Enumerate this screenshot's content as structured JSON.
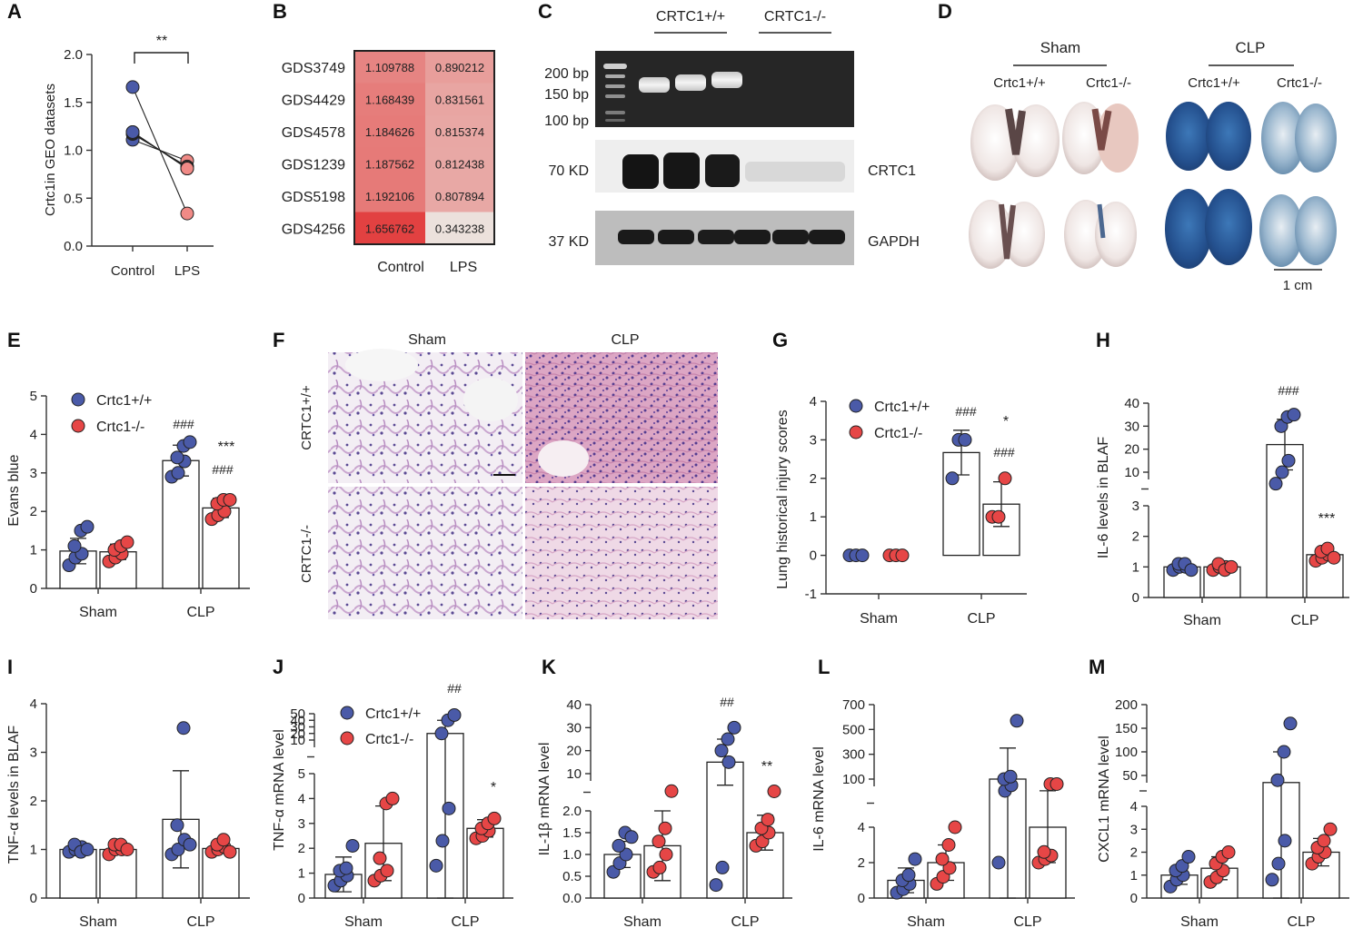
{
  "colors": {
    "wt": "#4a5aa8",
    "ko": "#e64646",
    "blot_bg": "#262626",
    "band": "#ececec",
    "axis": "#333333"
  },
  "panels": {
    "A": {
      "letter": "A",
      "ylabel": "Crtc1in GEO datasets",
      "xticks": [
        "Control",
        "LPS"
      ],
      "yticks": [
        "0.0",
        "0.5",
        "1.0",
        "1.5",
        "2.0"
      ],
      "sig": "**"
    },
    "B": {
      "letter": "B",
      "rows": [
        {
          "id": "GDS3749",
          "control": "1.109788",
          "lps": "0.890212"
        },
        {
          "id": "GDS4429",
          "control": "1.168439",
          "lps": "0.831561"
        },
        {
          "id": "GDS4578",
          "control": "1.184626",
          "lps": "0.815374"
        },
        {
          "id": "GDS1239",
          "control": "1.187562",
          "lps": "0.812438"
        },
        {
          "id": "GDS5198",
          "control": "1.192106",
          "lps": "0.807894"
        },
        {
          "id": "GDS4256",
          "control": "1.656762",
          "lps": "0.343238"
        }
      ],
      "col_labels": [
        "Control",
        "LPS"
      ]
    },
    "C": {
      "letter": "C",
      "group_wt": "CRTC1+/+",
      "group_ko": "CRTC1-/-",
      "ladder": [
        "200 bp",
        "150 bp",
        "100 bp"
      ],
      "kd70": "70 KD",
      "kd37": "37 KD",
      "label_crtc1": "CRTC1",
      "label_gapdh": "GAPDH"
    },
    "D": {
      "letter": "D",
      "sham": "Sham",
      "clp": "CLP",
      "wt": "Crtc1+/+",
      "ko": "Crtc1-/-",
      "scale": "1 cm"
    },
    "E": {
      "letter": "E",
      "ylabel": "Evans blue",
      "yticks": [
        "0",
        "1",
        "2",
        "3",
        "4",
        "5"
      ],
      "xticks": [
        "Sham",
        "CLP"
      ],
      "legend_wt": "Crtc1+/+",
      "legend_ko": "Crtc1-/-",
      "sig_hash": "###",
      "sig_hash2": "###",
      "sig_star": "***"
    },
    "F": {
      "letter": "F",
      "col_sham": "Sham",
      "col_clp": "CLP",
      "row_wt": "CRTC1+/+",
      "row_ko": "CRTC1-/-"
    },
    "G": {
      "letter": "G",
      "ylabel": "Lung historical injury scores",
      "yticks": [
        "-1",
        "0",
        "1",
        "2",
        "3",
        "4"
      ],
      "xticks": [
        "Sham",
        "CLP"
      ],
      "legend_wt": "Crtc1+/+",
      "legend_ko": "Crtc1-/-",
      "sig_hash": "###",
      "sig_star": "*",
      "sig_hash2": "###"
    },
    "H": {
      "letter": "H",
      "ylabel": "IL-6 levels in BLAF",
      "yticks_low": [
        "0",
        "1",
        "2",
        "3"
      ],
      "yticks_high": [
        "10",
        "20",
        "30",
        "40"
      ],
      "xticks": [
        "Sham",
        "CLP"
      ],
      "sig_hash": "###",
      "sig_star": "***"
    },
    "I": {
      "letter": "I",
      "ylabel": "TNF-α levels in BLAF",
      "yticks": [
        "0",
        "1",
        "2",
        "3",
        "4"
      ],
      "xticks": [
        "Sham",
        "CLP"
      ]
    },
    "J": {
      "letter": "J",
      "ylabel": "TNF-α mRNA level",
      "yticks_low": [
        "0",
        "1",
        "2",
        "3",
        "4",
        "5"
      ],
      "yticks_high": [
        "10",
        "20",
        "30",
        "40",
        "50"
      ],
      "xticks": [
        "Sham",
        "CLP"
      ],
      "legend_wt": "Crtc1+/+",
      "legend_ko": "Crtc1-/-",
      "sig_hash": "##",
      "sig_star": "*"
    },
    "K": {
      "letter": "K",
      "ylabel": "IL-1β mRNA level",
      "yticks_low": [
        "0.0",
        "0.5",
        "1.0",
        "1.5",
        "2.0"
      ],
      "yticks_high": [
        "10",
        "20",
        "30",
        "40"
      ],
      "xticks": [
        "Sham",
        "CLP"
      ],
      "sig_hash": "##",
      "sig_star": "**"
    },
    "L": {
      "letter": "L",
      "ylabel": "IL-6 mRNA level",
      "yticks_low": [
        "0",
        "2",
        "4"
      ],
      "yticks_high": [
        "100",
        "300",
        "500",
        "700"
      ],
      "xticks": [
        "Sham",
        "CLP"
      ]
    },
    "M": {
      "letter": "M",
      "ylabel": "CXCL1 mRNA level",
      "yticks_low": [
        "0",
        "1",
        "2",
        "3",
        "4"
      ],
      "yticks_high": [
        "50",
        "100",
        "150",
        "200"
      ],
      "xticks": [
        "Sham",
        "CLP"
      ]
    }
  },
  "chart_data": [
    {
      "panel": "A",
      "type": "scatter",
      "paired": true,
      "x": [
        "Control",
        "LPS"
      ],
      "series": [
        {
          "values": [
            1.11,
            0.89
          ]
        },
        {
          "values": [
            1.17,
            0.83
          ]
        },
        {
          "values": [
            1.18,
            0.82
          ]
        },
        {
          "values": [
            1.19,
            0.81
          ]
        },
        {
          "values": [
            1.19,
            0.81
          ]
        },
        {
          "values": [
            1.66,
            0.34
          ]
        }
      ],
      "ylim": [
        0,
        2
      ]
    },
    {
      "panel": "B",
      "type": "heatmap",
      "x": [
        "Control",
        "LPS"
      ],
      "y": [
        "GDS3749",
        "GDS4429",
        "GDS4578",
        "GDS1239",
        "GDS5198",
        "GDS4256"
      ],
      "values": [
        [
          1.109788,
          0.890212
        ],
        [
          1.168439,
          0.831561
        ],
        [
          1.184626,
          0.815374
        ],
        [
          1.187562,
          0.812438
        ],
        [
          1.192106,
          0.807894
        ],
        [
          1.656762,
          0.343238
        ]
      ]
    },
    {
      "panel": "E",
      "type": "bar",
      "categories": [
        "Sham",
        "CLP"
      ],
      "ylim": [
        0,
        5
      ],
      "series": [
        {
          "name": "Crtc1+/+",
          "values": [
            0.97,
            3.32
          ],
          "sd": [
            0.33,
            0.4
          ],
          "points": [
            [
              0.6,
              0.8,
              0.9,
              1.1,
              1.5,
              1.6
            ],
            [
              2.9,
              3.0,
              3.3,
              3.4,
              3.7,
              3.8
            ]
          ]
        },
        {
          "name": "Crtc1-/-",
          "values": [
            0.95,
            2.09
          ],
          "sd": [
            0.2,
            0.25
          ],
          "points": [
            [
              0.7,
              0.8,
              0.9,
              1.0,
              1.1,
              1.2
            ],
            [
              1.8,
              1.9,
              2.0,
              2.2,
              2.3,
              2.3
            ]
          ]
        }
      ]
    },
    {
      "panel": "G",
      "type": "bar",
      "categories": [
        "Sham",
        "CLP"
      ],
      "ylim": [
        -1,
        4
      ],
      "series": [
        {
          "name": "Crtc1+/+",
          "values": [
            0,
            2.67
          ],
          "sd": [
            0,
            0.58
          ],
          "points": [
            [
              0,
              0,
              0
            ],
            [
              2,
              3,
              3
            ]
          ]
        },
        {
          "name": "Crtc1-/-",
          "values": [
            0,
            1.33
          ],
          "sd": [
            0,
            0.58
          ],
          "points": [
            [
              0,
              0,
              0
            ],
            [
              1,
              1,
              2
            ]
          ]
        }
      ]
    },
    {
      "panel": "H",
      "type": "bar",
      "categories": [
        "Sham",
        "CLP"
      ],
      "ylim": [
        0,
        40
      ],
      "series": [
        {
          "name": "Crtc1+/+",
          "values": [
            1.0,
            22
          ],
          "sd": [
            0.1,
            11
          ],
          "points": [
            [
              0.9,
              1.0,
              1.0,
              1.1,
              1.1,
              0.9
            ],
            [
              5,
              10,
              15,
              30,
              34,
              35
            ]
          ]
        },
        {
          "name": "Crtc1-/-",
          "values": [
            1.0,
            1.4
          ],
          "sd": [
            0.1,
            0.15
          ],
          "points": [
            [
              0.9,
              1.0,
              1.0,
              1.1,
              0.9,
              1.0
            ],
            [
              1.2,
              1.3,
              1.4,
              1.5,
              1.6,
              1.3
            ]
          ]
        }
      ]
    },
    {
      "panel": "I",
      "type": "bar",
      "categories": [
        "Sham",
        "CLP"
      ],
      "ylim": [
        0,
        4
      ],
      "series": [
        {
          "name": "Crtc1+/+",
          "values": [
            1.0,
            1.62
          ],
          "sd": [
            0.07,
            1.0
          ],
          "points": [
            [
              0.95,
              1.0,
              1.05,
              1.1,
              0.95,
              1.0
            ],
            [
              0.9,
              1.0,
              1.2,
              1.5,
              3.5,
              1.1
            ]
          ]
        },
        {
          "name": "Crtc1-/-",
          "values": [
            1.0,
            1.02
          ],
          "sd": [
            0.07,
            0.08
          ],
          "points": [
            [
              0.9,
              1.0,
              1.0,
              1.1,
              1.1,
              1.0
            ],
            [
              0.95,
              1.0,
              1.05,
              1.1,
              1.2,
              0.95
            ]
          ]
        }
      ]
    },
    {
      "panel": "J",
      "type": "bar",
      "categories": [
        "Sham",
        "CLP"
      ],
      "ylim": [
        0,
        50
      ],
      "series": [
        {
          "name": "Crtc1+/+",
          "values": [
            0.95,
            20
          ],
          "sd": [
            0.7,
            20
          ],
          "points": [
            [
              0.5,
              0.7,
              0.9,
              1.1,
              1.2,
              2.1
            ],
            [
              1.3,
              2.3,
              3.6,
              20,
              40,
              48
            ]
          ]
        },
        {
          "name": "Crtc1-/-",
          "values": [
            2.2,
            2.8
          ],
          "sd": [
            1.5,
            0.35
          ],
          "points": [
            [
              0.7,
              0.9,
              1.1,
              1.6,
              3.8,
              4.0
            ],
            [
              2.4,
              2.5,
              2.7,
              2.8,
              3.0,
              3.2
            ]
          ]
        }
      ]
    },
    {
      "panel": "K",
      "type": "bar",
      "categories": [
        "Sham",
        "CLP"
      ],
      "ylim": [
        0,
        40
      ],
      "series": [
        {
          "name": "Crtc1+/+",
          "values": [
            1.0,
            15
          ],
          "sd": [
            0.3,
            10
          ],
          "points": [
            [
              0.6,
              0.8,
              1.0,
              1.2,
              1.5,
              1.4
            ],
            [
              0.3,
              0.7,
              15,
              20,
              25,
              30
            ]
          ]
        },
        {
          "name": "Crtc1-/-",
          "values": [
            1.2,
            1.5
          ],
          "sd": [
            0.8,
            0.4
          ],
          "points": [
            [
              0.6,
              0.7,
              1.0,
              1.3,
              1.6,
              2.4
            ],
            [
              1.2,
              1.3,
              1.5,
              1.6,
              1.8,
              2.3
            ]
          ]
        }
      ]
    },
    {
      "panel": "L",
      "type": "bar",
      "categories": [
        "Sham",
        "CLP"
      ],
      "ylim": [
        0,
        700
      ],
      "series": [
        {
          "name": "Crtc1+/+",
          "values": [
            1.0,
            100
          ],
          "sd": [
            0.7,
            250
          ],
          "points": [
            [
              0.3,
              0.5,
              0.8,
              1.0,
              1.3,
              2.2
            ],
            [
              2,
              5,
              50,
              100,
              120,
              570
            ]
          ]
        },
        {
          "name": "Crtc1-/-",
          "values": [
            2.0,
            4.0
          ],
          "sd": [
            1.0,
            2.0
          ],
          "points": [
            [
              0.8,
              1.2,
              1.7,
              2.2,
              3.0,
              4.0
            ],
            [
              2.0,
              2.2,
              2.4,
              2.6,
              60,
              60
            ]
          ]
        }
      ]
    },
    {
      "panel": "M",
      "type": "bar",
      "categories": [
        "Sham",
        "CLP"
      ],
      "ylim": [
        0,
        200
      ],
      "series": [
        {
          "name": "Crtc1+/+",
          "values": [
            1.0,
            35
          ],
          "sd": [
            0.4,
            65
          ],
          "points": [
            [
              0.5,
              0.8,
              1.0,
              1.2,
              1.4,
              1.8
            ],
            [
              0.8,
              1.5,
              2.5,
              40,
              100,
              160
            ]
          ]
        },
        {
          "name": "Crtc1-/-",
          "values": [
            1.3,
            2.0
          ],
          "sd": [
            0.5,
            0.6
          ],
          "points": [
            [
              0.7,
              0.9,
              1.2,
              1.5,
              1.8,
              2.0
            ],
            [
              1.5,
              1.8,
              2.0,
              2.2,
              2.5,
              3.0
            ]
          ]
        }
      ]
    }
  ]
}
